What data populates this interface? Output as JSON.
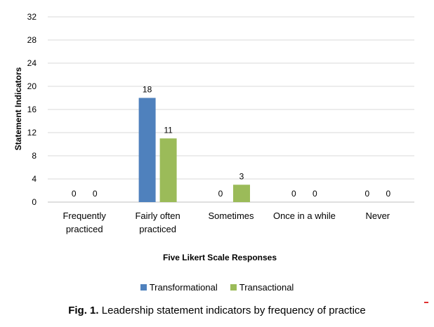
{
  "chart_data": {
    "type": "bar",
    "categories": [
      "Frequently practiced",
      "Fairly often practiced",
      "Sometimes",
      "Once in a while",
      "Never"
    ],
    "category_lines": [
      [
        "Frequently",
        "practiced"
      ],
      [
        "Fairly often",
        "practiced"
      ],
      [
        "Sometimes"
      ],
      [
        "Once in a while"
      ],
      [
        "Never"
      ]
    ],
    "series": [
      {
        "name": "Transformational",
        "color": "#4f81bd",
        "values": [
          0,
          18,
          0,
          0,
          0
        ]
      },
      {
        "name": "Transactional",
        "color": "#9bbb59",
        "values": [
          0,
          11,
          3,
          0,
          0
        ]
      }
    ],
    "ylabel": "Statement Indicators",
    "xlabel": "Five Likert Scale Responses",
    "ylim": [
      0,
      32
    ],
    "yticks": [
      0,
      4,
      8,
      12,
      16,
      20,
      24,
      28,
      32
    ],
    "grid": true,
    "legend_position": "bottom"
  },
  "caption": {
    "prefix": "Fig. 1.",
    "text": " Leadership statement indicators by frequency of practice"
  }
}
